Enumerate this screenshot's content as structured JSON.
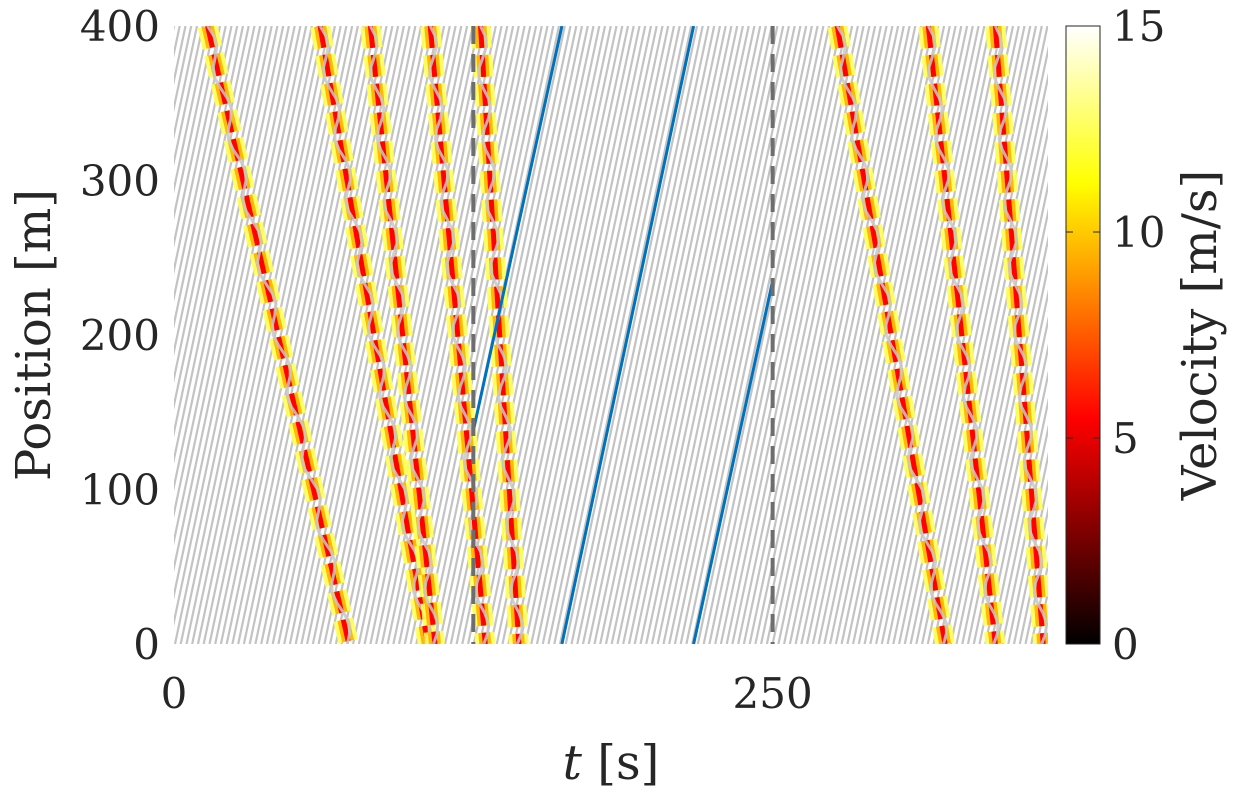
{
  "chart_data": {
    "type": "heatmap",
    "title": "",
    "xlabel_symbol": "t",
    "xlabel_unit": "[s]",
    "ylabel": "Position [m]",
    "colorbar_label": "Velocity [m/s]",
    "xlim": [
      0,
      365
    ],
    "ylim": [
      0,
      400
    ],
    "x_ticks": [
      0,
      250
    ],
    "y_ticks": [
      0,
      100,
      200,
      300,
      400
    ],
    "colorbar_ticks": [
      0,
      5,
      10,
      15
    ],
    "colorbar_range": [
      0,
      15
    ],
    "colormap": "hot",
    "colors": {
      "trajectory_gray": "#c3c3c3",
      "highlight_blue": "#0072bd",
      "dashed_marker": "#6e6e6e"
    },
    "vertical_markers": [
      125,
      250
    ],
    "ring_length": 400,
    "highlighted_vehicle_segments": [
      {
        "t": [
          125,
          162
        ],
        "y": [
          138,
          400
        ]
      },
      {
        "t": [
          162,
          217
        ],
        "y": [
          0,
          400
        ]
      },
      {
        "t": [
          217,
          250
        ],
        "y": [
          0,
          235
        ]
      }
    ],
    "stop_and_go_waves": [
      {
        "t_at_top": 14,
        "t_at_bottom": 73
      },
      {
        "t_at_top": 61,
        "t_at_bottom": 106
      },
      {
        "t_at_top": 82,
        "t_at_bottom": 109
      },
      {
        "t_at_top": 107,
        "t_at_bottom": 130
      },
      {
        "t_at_top": 128,
        "t_at_bottom": 144
      },
      {
        "t_at_top": 277,
        "t_at_bottom": 322
      },
      {
        "t_at_top": 315,
        "t_at_bottom": 343
      },
      {
        "t_at_top": 343,
        "t_at_bottom": 363
      }
    ],
    "trajectory_slope_m_per_s": 7.3,
    "trajectory_spacing_s": 2.4
  }
}
